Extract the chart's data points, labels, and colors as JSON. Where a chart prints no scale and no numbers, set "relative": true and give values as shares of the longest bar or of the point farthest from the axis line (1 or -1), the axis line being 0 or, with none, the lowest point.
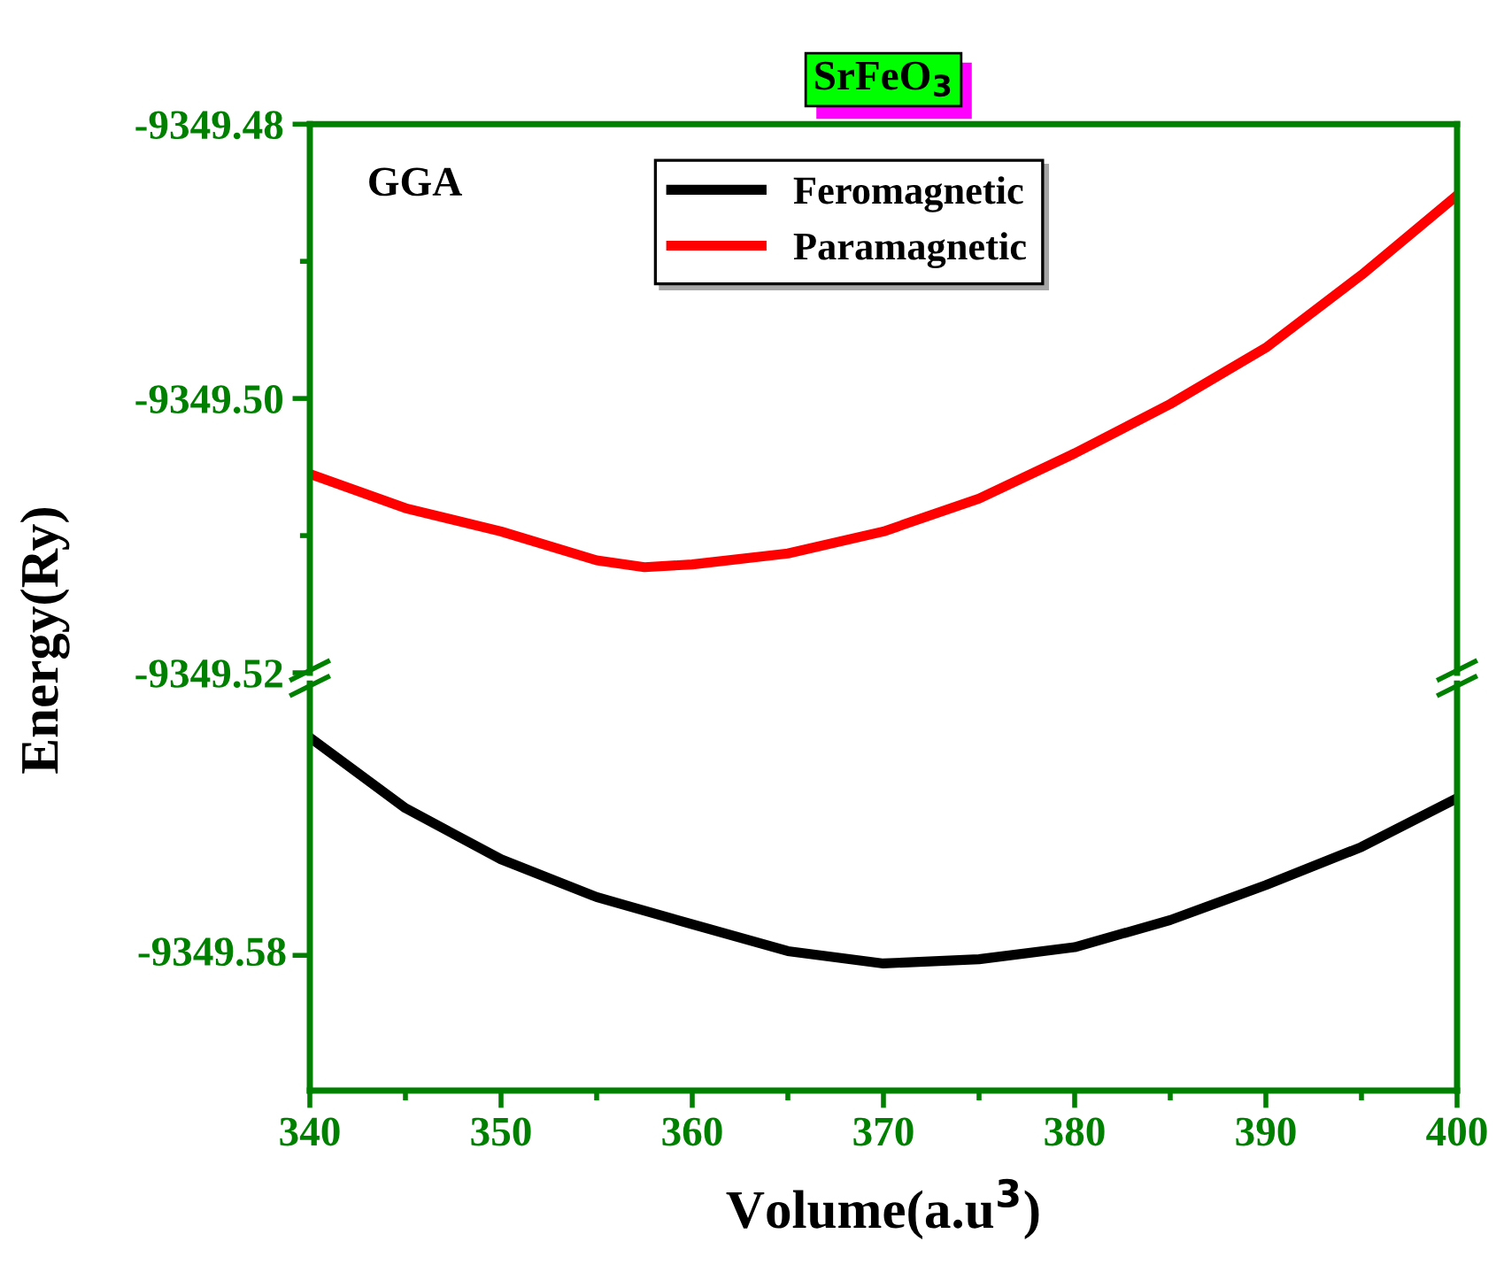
{
  "chart_data": [
    {
      "type": "line",
      "title": "SrFeO$_{3}$",
      "ylabel": "Energy(Ry)",
      "annotations": [
        "GGA"
      ],
      "x": [
        340,
        345,
        350,
        355,
        357.5,
        360,
        365,
        370,
        375,
        380,
        385,
        390,
        395,
        400
      ],
      "series": [
        {
          "name": "Paramagnetic",
          "color": "#ff0000",
          "values": [
            -9349.5055,
            -9349.508,
            -9349.5097,
            -9349.5118,
            -9349.5123,
            -9349.5121,
            -9349.5113,
            -9349.5097,
            -9349.5073,
            -9349.504,
            -9349.5004,
            -9349.4963,
            -9349.491,
            -9349.4852
          ]
        }
      ],
      "xlim": [
        340,
        400
      ],
      "ylim": [
        -9349.52,
        -9349.48
      ],
      "yticks": [
        -9349.52,
        {
          "value": -9349.5,
          "label": "-9349.50"
        },
        -9349.48
      ],
      "tick_labels": "y",
      "legend": "top",
      "grid": false,
      "marker": "none",
      "line_style": "solid"
    },
    {
      "type": "line",
      "xlabel": "Volume(a.u$^{3}$)",
      "x": [
        340,
        345,
        350,
        355,
        360,
        365,
        370,
        375,
        380,
        385,
        390,
        395,
        400
      ],
      "series": [
        {
          "name": "Feromagnetic",
          "color": "#000000",
          "values": [
            1,
            0.8,
            0.655,
            0.548,
            0.471,
            0.395,
            0.36,
            0.372,
            0.406,
            0.483,
            0.582,
            0.69,
            0.828
          ]
        }
      ],
      "relative": true,
      "annotations": [
        "-9349.58"
      ],
      "xlim": [
        340,
        400
      ],
      "xticks": [
        340,
        350,
        360,
        370,
        380,
        390,
        400
      ],
      "grid": false,
      "marker": "none",
      "line_style": "solid"
    }
  ]
}
